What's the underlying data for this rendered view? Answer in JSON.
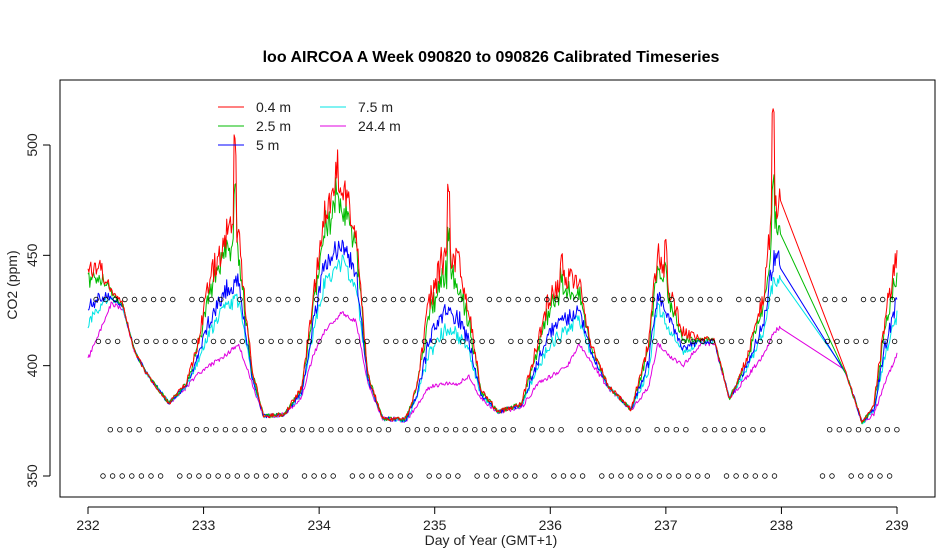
{
  "chart_data": {
    "type": "line",
    "title": "loo AIRCOA A  Week 090820 to 090826  Calibrated Timeseries",
    "xlabel": "Day of Year (GMT+1)",
    "ylabel": "CO2 (ppm)",
    "xlim": [
      232,
      239
    ],
    "ylim": [
      345,
      527
    ],
    "xticks": [
      "232",
      "233",
      "234",
      "235",
      "236",
      "237",
      "238",
      "239"
    ],
    "yticks": [
      "350",
      "400",
      "450",
      "500"
    ],
    "legend_position": "top-left",
    "series": [
      {
        "name": "0.4 m",
        "color": "#ff0000"
      },
      {
        "name": "2.5 m",
        "color": "#00bb00"
      },
      {
        "name": "5 m",
        "color": "#0000ff"
      },
      {
        "name": "7.5 m",
        "color": "#00e5e5"
      },
      {
        "name": "24.4 m",
        "color": "#e000e0"
      }
    ],
    "flag_markers": {
      "rows_ppm": [
        430,
        411,
        371,
        350
      ],
      "gap_days": [
        238.0,
        238.35
      ],
      "spacing_days": 0.083
    }
  }
}
